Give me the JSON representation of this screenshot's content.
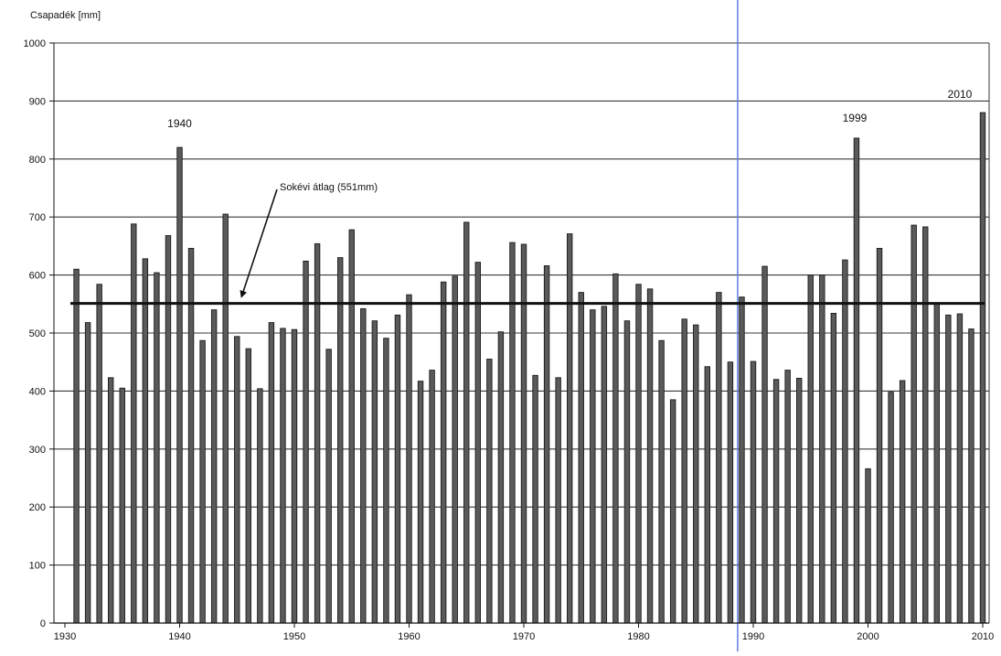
{
  "chart_data": {
    "type": "bar",
    "ylabel": "Csapadék [mm]",
    "xlabel": "",
    "title": "",
    "ylim": [
      0,
      1000
    ],
    "xlim": [
      1930,
      2010
    ],
    "y_ticks": [
      0,
      100,
      200,
      300,
      400,
      500,
      600,
      700,
      800,
      900,
      1000
    ],
    "x_ticks": [
      1930,
      1940,
      1950,
      1960,
      1970,
      1980,
      1990,
      2000,
      2010
    ],
    "grid": true,
    "years": [
      1931,
      1932,
      1933,
      1934,
      1935,
      1936,
      1937,
      1938,
      1939,
      1940,
      1941,
      1942,
      1943,
      1944,
      1945,
      1946,
      1947,
      1948,
      1949,
      1950,
      1951,
      1952,
      1953,
      1954,
      1955,
      1956,
      1957,
      1958,
      1959,
      1960,
      1961,
      1962,
      1963,
      1964,
      1965,
      1966,
      1967,
      1968,
      1969,
      1970,
      1971,
      1972,
      1973,
      1974,
      1975,
      1976,
      1977,
      1978,
      1979,
      1980,
      1981,
      1982,
      1983,
      1984,
      1985,
      1986,
      1987,
      1988,
      1989,
      1990,
      1991,
      1992,
      1993,
      1994,
      1995,
      1996,
      1997,
      1998,
      1999,
      2000,
      2001,
      2002,
      2003,
      2004,
      2005,
      2006,
      2007,
      2008,
      2009,
      2010
    ],
    "values": [
      610,
      518,
      584,
      423,
      405,
      688,
      628,
      604,
      668,
      820,
      646,
      487,
      540,
      705,
      494,
      473,
      404,
      518,
      508,
      506,
      624,
      654,
      472,
      630,
      678,
      542,
      521,
      491,
      531,
      566,
      417,
      436,
      588,
      598,
      691,
      622,
      455,
      502,
      656,
      653,
      427,
      616,
      423,
      671,
      570,
      540,
      546,
      602,
      521,
      584,
      576,
      487,
      385,
      524,
      514,
      442,
      570,
      450,
      562,
      451,
      615,
      420,
      436,
      422,
      600,
      600,
      534,
      626,
      836,
      266,
      646,
      398,
      418,
      686,
      683,
      550,
      531,
      533,
      507,
      880
    ],
    "average": {
      "value": 551,
      "label": "Sokévi átlag (551mm)"
    },
    "annotations": [
      {
        "year": 1940,
        "label": "1940"
      },
      {
        "year": 1999,
        "label": "1999"
      },
      {
        "year": 2010,
        "label": "2010"
      }
    ],
    "reference_line_year": 1988,
    "colors": {
      "bar_fill": "#5a5a5a",
      "bar_stroke": "#1a1a1a",
      "grid": "#3a3a3a",
      "average_line": "#111111",
      "reference_line": "#5a7fe0",
      "axis": "#111111"
    }
  }
}
